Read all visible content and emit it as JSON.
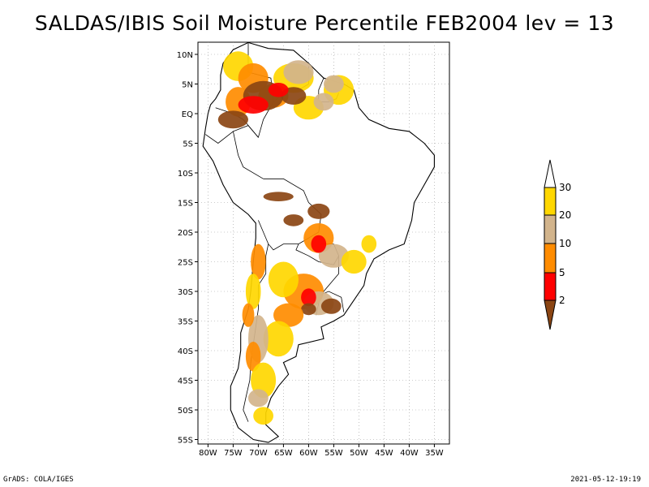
{
  "title": "SALDAS/IBIS Soil Moisture Percentile FEB2004 lev = 13",
  "lat_ticks": [
    "10N",
    "5N",
    "EQ",
    "5S",
    "10S",
    "15S",
    "20S",
    "25S",
    "30S",
    "35S",
    "40S",
    "45S",
    "50S",
    "55S"
  ],
  "lon_ticks": [
    "80W",
    "75W",
    "70W",
    "65W",
    "60W",
    "55W",
    "50W",
    "45W",
    "40W",
    "35W"
  ],
  "colorbar": {
    "labels": [
      "2",
      "5",
      "10",
      "20",
      "30"
    ],
    "colors": {
      "below_2": "#8B4513",
      "2_5": "#FF0000",
      "5_10": "#FF8C00",
      "10_20": "#D2B48C",
      "20_30": "#FFD700",
      "above_30": "#FFFFFF"
    }
  },
  "footer_left": "GrADS: COLA/IGES",
  "footer_right": "2021-05-12-19:19"
}
